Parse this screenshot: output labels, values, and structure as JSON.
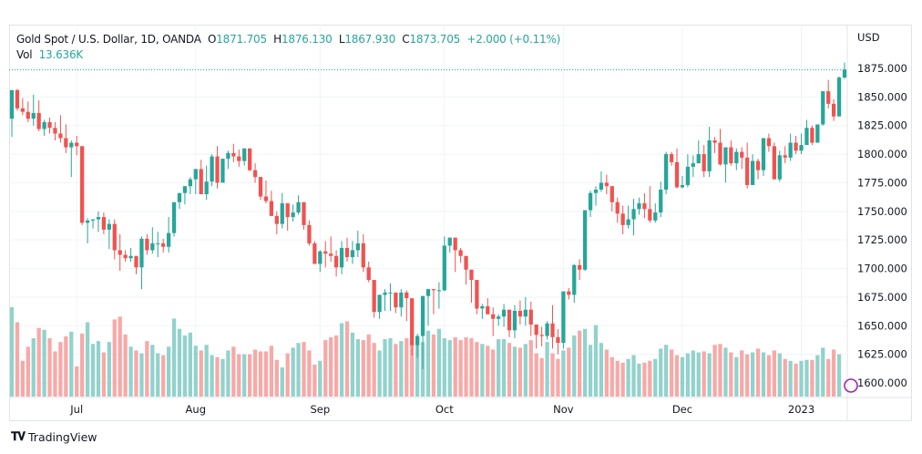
{
  "header": {
    "symbol": "Gold Spot / U.S. Dollar, 1D, OANDA",
    "open_label": "O",
    "open": "1871.705",
    "high_label": "H",
    "high": "1876.130",
    "low_label": "L",
    "low": "1867.930",
    "close_label": "C",
    "close": "1873.705",
    "change": "+2.000 (+0.11%)",
    "vol_label": "Vol",
    "vol": "13.636K"
  },
  "footer": {
    "brand": "TradingView",
    "logo_icon": "tradingview-logo-icon"
  },
  "colors": {
    "up": "#26a69a",
    "down": "#ef5350",
    "up_vol": "#92d2cc",
    "down_vol": "#f7a9a7",
    "grid": "#f0f3fa",
    "last_price_line": "#26a69a"
  },
  "chart_data": {
    "type": "candlestick",
    "title": "Gold Spot / U.S. Dollar, 1D, OANDA",
    "currency": "USD",
    "ylim": [
      1590,
      1885
    ],
    "yticks": [
      1600,
      1625,
      1650,
      1675,
      1700,
      1725,
      1750,
      1775,
      1800,
      1825,
      1850,
      1875
    ],
    "ytick_labels": [
      "1600.000",
      "1625.000",
      "1650.000",
      "1675.000",
      "1700.000",
      "1725.000",
      "1750.000",
      "1775.000",
      "1800.000",
      "1825.000",
      "1850.000",
      "1875.000"
    ],
    "xtick_labels": [
      {
        "label": "Jul",
        "index": 12
      },
      {
        "label": "Aug",
        "index": 34
      },
      {
        "label": "Sep",
        "index": 57
      },
      {
        "label": "Oct",
        "index": 80
      },
      {
        "label": "Nov",
        "index": 102
      },
      {
        "label": "Dec",
        "index": 124
      },
      {
        "label": "2023",
        "index": 146
      }
    ],
    "last_price": 1873.705,
    "grid": true,
    "candles": [
      [
        1831,
        1856,
        1815,
        1856
      ],
      [
        1856,
        1857,
        1838,
        1840
      ],
      [
        1840,
        1849,
        1834,
        1837
      ],
      [
        1837,
        1846,
        1828,
        1831
      ],
      [
        1831,
        1852,
        1825,
        1836
      ],
      [
        1836,
        1847,
        1820,
        1822
      ],
      [
        1822,
        1830,
        1816,
        1828
      ],
      [
        1828,
        1832,
        1818,
        1823
      ],
      [
        1823,
        1828,
        1812,
        1818
      ],
      [
        1818,
        1834,
        1810,
        1814
      ],
      [
        1814,
        1826,
        1801,
        1806
      ],
      [
        1806,
        1812,
        1780,
        1810
      ],
      [
        1810,
        1816,
        1799,
        1807
      ],
      [
        1807,
        1805,
        1738,
        1740
      ],
      [
        1740,
        1744,
        1722,
        1742
      ],
      [
        1742,
        1742,
        1735,
        1743
      ],
      [
        1743,
        1750,
        1732,
        1745
      ],
      [
        1745,
        1749,
        1730,
        1734
      ],
      [
        1734,
        1743,
        1717,
        1739
      ],
      [
        1739,
        1743,
        1708,
        1716
      ],
      [
        1716,
        1730,
        1698,
        1712
      ],
      [
        1712,
        1716,
        1706,
        1709
      ],
      [
        1709,
        1718,
        1706,
        1711
      ],
      [
        1711,
        1708,
        1695,
        1701
      ],
      [
        1701,
        1728,
        1682,
        1726
      ],
      [
        1726,
        1730,
        1712,
        1716
      ],
      [
        1716,
        1736,
        1713,
        1722
      ],
      [
        1722,
        1732,
        1710,
        1722
      ],
      [
        1722,
        1726,
        1714,
        1719
      ],
      [
        1719,
        1745,
        1714,
        1731
      ],
      [
        1731,
        1749,
        1728,
        1758
      ],
      [
        1758,
        1762,
        1752,
        1766
      ],
      [
        1766,
        1770,
        1756,
        1772
      ],
      [
        1772,
        1780,
        1765,
        1778
      ],
      [
        1778,
        1782,
        1765,
        1787
      ],
      [
        1787,
        1795,
        1774,
        1765
      ],
      [
        1765,
        1790,
        1760,
        1776
      ],
      [
        1776,
        1800,
        1772,
        1798
      ],
      [
        1798,
        1807,
        1770,
        1775
      ],
      [
        1775,
        1792,
        1775,
        1796
      ],
      [
        1796,
        1803,
        1787,
        1801
      ],
      [
        1801,
        1809,
        1793,
        1798
      ],
      [
        1798,
        1804,
        1789,
        1794
      ],
      [
        1794,
        1805,
        1790,
        1805
      ],
      [
        1805,
        1805,
        1785,
        1786
      ],
      [
        1786,
        1792,
        1775,
        1780
      ],
      [
        1780,
        1780,
        1760,
        1763
      ],
      [
        1763,
        1777,
        1757,
        1759
      ],
      [
        1759,
        1768,
        1746,
        1746
      ],
      [
        1746,
        1750,
        1730,
        1739
      ],
      [
        1739,
        1766,
        1735,
        1757
      ],
      [
        1757,
        1756,
        1733,
        1745
      ],
      [
        1745,
        1756,
        1741,
        1749
      ],
      [
        1749,
        1764,
        1747,
        1758
      ],
      [
        1758,
        1758,
        1734,
        1738
      ],
      [
        1738,
        1742,
        1720,
        1722
      ],
      [
        1722,
        1724,
        1704,
        1704
      ],
      [
        1704,
        1716,
        1697,
        1715
      ],
      [
        1715,
        1724,
        1701,
        1713
      ],
      [
        1713,
        1728,
        1706,
        1711
      ],
      [
        1711,
        1716,
        1693,
        1701
      ],
      [
        1701,
        1724,
        1695,
        1718
      ],
      [
        1718,
        1727,
        1706,
        1710
      ],
      [
        1710,
        1724,
        1704,
        1716
      ],
      [
        1716,
        1733,
        1710,
        1722
      ],
      [
        1722,
        1730,
        1697,
        1701
      ],
      [
        1701,
        1706,
        1688,
        1690
      ],
      [
        1690,
        1690,
        1657,
        1662
      ],
      [
        1662,
        1675,
        1656,
        1677
      ],
      [
        1677,
        1682,
        1663,
        1679
      ],
      [
        1679,
        1687,
        1663,
        1679
      ],
      [
        1679,
        1678,
        1661,
        1666
      ],
      [
        1666,
        1682,
        1658,
        1679
      ],
      [
        1679,
        1681,
        1654,
        1674
      ],
      [
        1674,
        1674,
        1624,
        1633
      ],
      [
        1633,
        1643,
        1622,
        1641
      ],
      [
        1641,
        1653,
        1612,
        1676
      ],
      [
        1676,
        1668,
        1650,
        1682
      ],
      [
        1682,
        1670,
        1660,
        1681
      ],
      [
        1681,
        1688,
        1665,
        1681
      ],
      [
        1681,
        1728,
        1680,
        1720
      ],
      [
        1720,
        1726,
        1714,
        1727
      ],
      [
        1727,
        1725,
        1697,
        1716
      ],
      [
        1716,
        1718,
        1705,
        1711
      ],
      [
        1711,
        1708,
        1686,
        1699
      ],
      [
        1699,
        1697,
        1670,
        1690
      ],
      [
        1690,
        1688,
        1660,
        1665
      ],
      [
        1665,
        1669,
        1656,
        1667
      ],
      [
        1667,
        1674,
        1660,
        1660
      ],
      [
        1660,
        1666,
        1641,
        1656
      ],
      [
        1656,
        1660,
        1650,
        1658
      ],
      [
        1658,
        1669,
        1649,
        1664
      ],
      [
        1664,
        1663,
        1640,
        1646
      ],
      [
        1646,
        1668,
        1639,
        1663
      ],
      [
        1663,
        1672,
        1651,
        1658
      ],
      [
        1658,
        1675,
        1650,
        1664
      ],
      [
        1664,
        1671,
        1641,
        1651
      ],
      [
        1651,
        1651,
        1630,
        1642
      ],
      [
        1642,
        1649,
        1632,
        1641
      ],
      [
        1641,
        1654,
        1638,
        1652
      ],
      [
        1652,
        1668,
        1630,
        1640
      ],
      [
        1640,
        1647,
        1625,
        1635
      ],
      [
        1635,
        1680,
        1630,
        1680
      ],
      [
        1680,
        1683,
        1673,
        1677
      ],
      [
        1677,
        1704,
        1670,
        1703
      ],
      [
        1703,
        1708,
        1690,
        1699
      ],
      [
        1699,
        1744,
        1698,
        1751
      ],
      [
        1751,
        1768,
        1745,
        1766
      ],
      [
        1766,
        1772,
        1755,
        1769
      ],
      [
        1769,
        1785,
        1767,
        1775
      ],
      [
        1775,
        1782,
        1765,
        1772
      ],
      [
        1772,
        1770,
        1750,
        1758
      ],
      [
        1758,
        1762,
        1740,
        1748
      ],
      [
        1748,
        1755,
        1730,
        1738
      ],
      [
        1738,
        1755,
        1735,
        1743
      ],
      [
        1743,
        1761,
        1729,
        1752
      ],
      [
        1752,
        1762,
        1747,
        1757
      ],
      [
        1757,
        1766,
        1744,
        1752
      ],
      [
        1752,
        1772,
        1740,
        1742
      ],
      [
        1742,
        1757,
        1740,
        1749
      ],
      [
        1749,
        1776,
        1745,
        1769
      ],
      [
        1769,
        1802,
        1765,
        1800
      ],
      [
        1800,
        1802,
        1790,
        1793
      ],
      [
        1793,
        1805,
        1770,
        1771
      ],
      [
        1771,
        1781,
        1770,
        1773
      ],
      [
        1773,
        1800,
        1771,
        1789
      ],
      [
        1789,
        1799,
        1780,
        1792
      ],
      [
        1792,
        1812,
        1792,
        1800
      ],
      [
        1800,
        1808,
        1780,
        1785
      ],
      [
        1785,
        1824,
        1780,
        1812
      ],
      [
        1812,
        1815,
        1801,
        1810
      ],
      [
        1810,
        1822,
        1790,
        1791
      ],
      [
        1791,
        1805,
        1775,
        1806
      ],
      [
        1806,
        1812,
        1790,
        1792
      ],
      [
        1792,
        1805,
        1786,
        1802
      ],
      [
        1802,
        1806,
        1787,
        1797
      ],
      [
        1797,
        1810,
        1770,
        1773
      ],
      [
        1773,
        1800,
        1774,
        1794
      ],
      [
        1794,
        1796,
        1778,
        1786
      ],
      [
        1786,
        1813,
        1781,
        1814
      ],
      [
        1814,
        1818,
        1802,
        1807
      ],
      [
        1807,
        1810,
        1785,
        1778
      ],
      [
        1778,
        1803,
        1776,
        1799
      ],
      [
        1799,
        1807,
        1792,
        1797
      ],
      [
        1797,
        1818,
        1794,
        1810
      ],
      [
        1810,
        1816,
        1800,
        1803
      ],
      [
        1803,
        1818,
        1800,
        1808
      ],
      [
        1808,
        1830,
        1808,
        1823
      ],
      [
        1823,
        1825,
        1808,
        1810
      ],
      [
        1810,
        1826,
        1810,
        1826
      ],
      [
        1826,
        1851,
        1825,
        1855
      ],
      [
        1855,
        1865,
        1840,
        1844
      ],
      [
        1844,
        1848,
        1829,
        1833
      ],
      [
        1833,
        1868,
        1833,
        1867
      ],
      [
        1867,
        1880,
        1866,
        1874
      ]
    ],
    "volume": [
      95,
      79,
      38,
      53,
      62,
      73,
      71,
      62,
      48,
      58,
      64,
      69,
      32,
      67,
      79,
      56,
      59,
      47,
      58,
      82,
      85,
      66,
      53,
      49,
      46,
      59,
      55,
      46,
      44,
      53,
      83,
      72,
      65,
      68,
      54,
      49,
      55,
      44,
      42,
      40,
      49,
      53,
      45,
      45,
      45,
      50,
      48,
      48,
      54,
      39,
      31,
      46,
      52,
      57,
      58,
      49,
      34,
      38,
      60,
      63,
      65,
      78,
      80,
      68,
      61,
      60,
      66,
      57,
      49,
      61,
      62,
      56,
      59,
      62,
      56,
      61,
      58,
      70,
      66,
      72,
      62,
      60,
      63,
      60,
      63,
      62,
      58,
      56,
      54,
      50,
      61,
      61,
      57,
      53,
      52,
      56,
      60,
      46,
      41,
      58,
      46,
      40,
      49,
      52,
      65,
      70,
      72,
      55,
      76,
      57,
      50,
      42,
      38,
      36,
      40,
      44,
      35,
      36,
      38,
      40,
      51,
      55,
      50,
      44,
      42,
      46,
      49,
      47,
      48,
      46,
      55,
      56,
      52,
      47,
      42,
      49,
      45,
      47,
      51,
      47,
      44,
      49,
      46,
      40,
      38,
      35,
      38,
      39,
      39,
      44,
      52,
      40,
      50,
      45
    ],
    "volume_up": null
  }
}
